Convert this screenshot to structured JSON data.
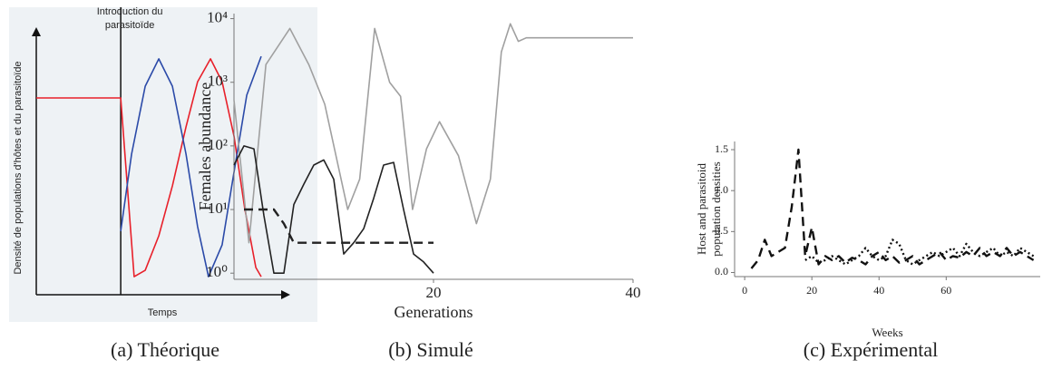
{
  "chart_data": [
    {
      "type": "line",
      "caption": "(a) Théorique",
      "ylabel": [
        "Densité de populations d'hôtes et du parasitoïde"
      ],
      "xlabel": "Temps",
      "annotation": {
        "lines": [
          "Introduction du",
          "parasitoïde"
        ],
        "x": 33.5
      },
      "xlim": [
        0,
        100
      ],
      "ylim": [
        0,
        100
      ],
      "axes": "arrows",
      "background": "#eef2f5",
      "series": [
        {
          "color": "#e8202a",
          "dash": "solid",
          "x": [
            0,
            33.5,
            38.8,
            43.2,
            48.6,
            54,
            59.4,
            64,
            69.1,
            73.7,
            78.4,
            82.7,
            87.1,
            89.2
          ],
          "values": [
            77.5,
            77.5,
            7.1,
            9.6,
            23.2,
            42.9,
            66.1,
            83.9,
            92.9,
            83.9,
            62.5,
            33.9,
            10.7,
            7.1
          ]
        },
        {
          "color": "#2b4aa8",
          "dash": "solid",
          "x": [
            33.5,
            37.8,
            43.2,
            48.6,
            54,
            59.4,
            64,
            68.3,
            73.7,
            78.4,
            83.5,
            89.2
          ],
          "values": [
            25,
            55.4,
            82.1,
            92.9,
            82.1,
            55.4,
            26.8,
            7.1,
            19.6,
            48.2,
            78.6,
            93.9
          ]
        }
      ]
    },
    {
      "type": "line",
      "caption": "(b) Simulé",
      "ylabel": [
        "Females abundance"
      ],
      "xlabel": "Generations",
      "log_y": true,
      "axes": "left-bottom",
      "xlim": [
        0,
        40
      ],
      "ylim": [
        0.8,
        12000
      ],
      "xticks": [
        20,
        40
      ],
      "yticks": [
        {
          "value": 1,
          "label": "10⁰"
        },
        {
          "value": 10,
          "label": "10¹"
        },
        {
          "value": 100,
          "label": "10²"
        },
        {
          "value": 1000,
          "label": "10³"
        },
        {
          "value": 10000,
          "label": "10⁴"
        }
      ],
      "series": [
        {
          "color": "#a0a0a0",
          "dash": "solid",
          "x": [
            0,
            1.5,
            3.2,
            5.6,
            7.5,
            9.1,
            11.4,
            12.6,
            14.1,
            15.6,
            16.7,
            17.9,
            19.3,
            20.6,
            22.5,
            24.3,
            25.7,
            26.8,
            27.7,
            28.5,
            29.3,
            30.2,
            40
          ],
          "values": [
            525,
            3,
            1900,
            7000,
            1900,
            450,
            10,
            30,
            7000,
            1000,
            600,
            10,
            90,
            240,
            70,
            6,
            30,
            3000,
            8300,
            4400,
            5000,
            5000,
            5000
          ]
        },
        {
          "color": "#222222",
          "dash": "solid",
          "x": [
            0,
            1,
            2,
            3,
            4,
            5,
            6,
            7,
            8,
            9,
            10,
            11,
            12,
            13,
            14,
            15,
            16,
            17,
            18,
            19,
            20
          ],
          "values": [
            50,
            100,
            90,
            8,
            1,
            1,
            12,
            25,
            50,
            60,
            30,
            2,
            3,
            5,
            15,
            50,
            55,
            10,
            2,
            1.5,
            1
          ]
        },
        {
          "color": "#222222",
          "dash": "dashed",
          "x": [
            1,
            4,
            5,
            6,
            7,
            20
          ],
          "values": [
            10,
            10,
            6,
            3,
            3,
            3
          ]
        }
      ]
    },
    {
      "type": "line",
      "caption": "(c) Expérimental",
      "ylabel": [
        "Host and parasitoid",
        "population densities"
      ],
      "xlabel": "Weeks",
      "axes": "left-bottom",
      "xlim": [
        -3,
        88
      ],
      "ylim": [
        -0.05,
        1.6
      ],
      "xticks": [
        0,
        20,
        40,
        60
      ],
      "yticks": [
        {
          "value": 0,
          "label": "0.0"
        },
        0.5,
        {
          "value": 1,
          "label": "1.0"
        },
        1.5
      ],
      "series": [
        {
          "color": "#111111",
          "dash": "dashed",
          "x": [
            2,
            4,
            6,
            8,
            10,
            12,
            14,
            16,
            18,
            20,
            22,
            24,
            26,
            28,
            30,
            32,
            34,
            36,
            38,
            40,
            42,
            44,
            46,
            48,
            50,
            52,
            54,
            56,
            58,
            60,
            62,
            64,
            66,
            68,
            70,
            72,
            74,
            76,
            78,
            80,
            82,
            84,
            86
          ],
          "values": [
            0.05,
            0.15,
            0.4,
            0.2,
            0.25,
            0.3,
            0.8,
            1.5,
            0.2,
            0.55,
            0.1,
            0.2,
            0.15,
            0.2,
            0.12,
            0.18,
            0.15,
            0.1,
            0.2,
            0.25,
            0.15,
            0.2,
            0.12,
            0.15,
            0.2,
            0.1,
            0.15,
            0.2,
            0.25,
            0.15,
            0.2,
            0.18,
            0.25,
            0.2,
            0.3,
            0.2,
            0.25,
            0.2,
            0.3,
            0.2,
            0.25,
            0.2,
            0.15
          ]
        },
        {
          "color": "#111111",
          "dash": "dotted",
          "x": [
            2,
            4,
            6,
            8,
            10,
            12,
            14,
            16,
            18,
            20,
            22,
            24,
            26,
            28,
            30,
            32,
            34,
            36,
            38,
            40,
            42,
            44,
            46,
            48,
            50,
            52,
            54,
            56,
            58,
            60,
            62,
            64,
            66,
            68,
            70,
            72,
            74,
            76,
            78,
            80,
            82,
            84,
            86
          ],
          "values": [
            null,
            null,
            null,
            null,
            null,
            null,
            null,
            null,
            0.15,
            0.2,
            0.12,
            0.15,
            0.2,
            0.15,
            0.1,
            0.15,
            0.2,
            0.3,
            0.2,
            0.15,
            0.2,
            0.4,
            0.35,
            0.15,
            0.1,
            0.15,
            0.2,
            0.25,
            0.2,
            0.25,
            0.3,
            0.2,
            0.35,
            0.25,
            0.2,
            0.25,
            0.3,
            0.2,
            0.25,
            0.2,
            0.3,
            0.25,
            0.2
          ]
        }
      ]
    }
  ]
}
